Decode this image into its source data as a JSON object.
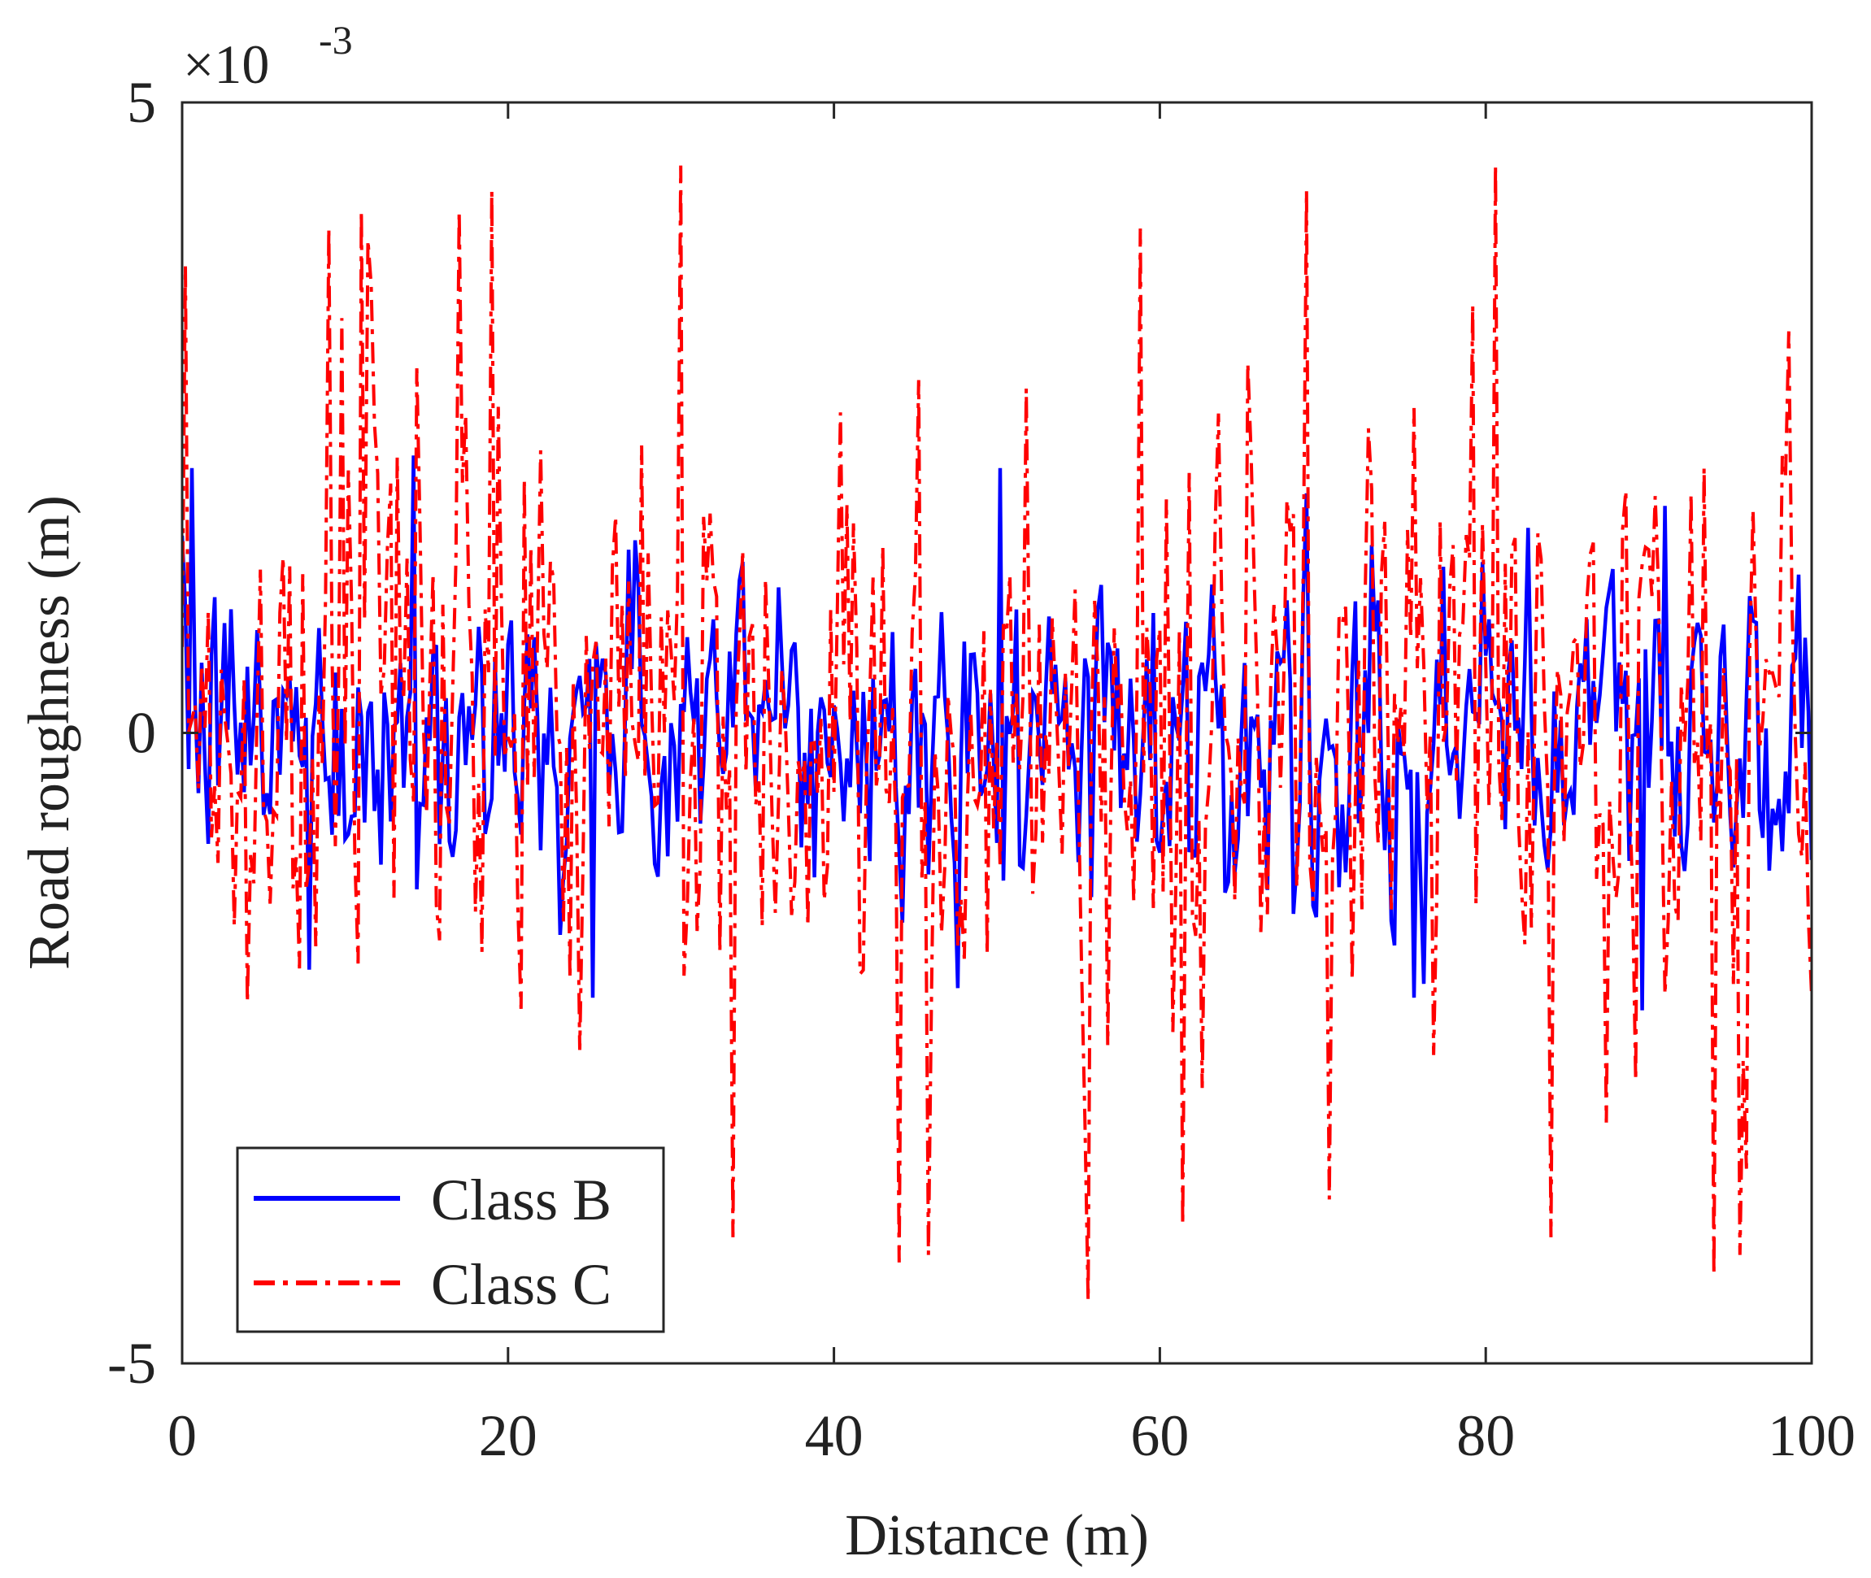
{
  "chart_data": {
    "type": "line",
    "title": "",
    "xlabel": "Distance (m)",
    "ylabel": "Road roughness (m)",
    "xlim": [
      0,
      100
    ],
    "ylim": [
      -5,
      5
    ],
    "y_scale_label": {
      "base": "×10",
      "exponent": "-3"
    },
    "x_ticks": [
      0,
      20,
      40,
      60,
      80,
      100
    ],
    "x_tick_labels": [
      "0",
      "20",
      "40",
      "60",
      "80",
      "100"
    ],
    "y_ticks": [
      -5,
      0,
      5
    ],
    "y_tick_labels": [
      "-5",
      "0",
      "5"
    ],
    "grid": false,
    "legend_position": "bottom-left",
    "note": "Dense random road-profile signals; values are in units of 1e-3 m. Sampled approximately every 0.2 m; only envelope and notable peaks are readable from the figure.",
    "series": [
      {
        "name": "Class B",
        "color": "#0000ff",
        "style": "solid",
        "sample_step": 0.2,
        "amplitude_rms": 0.6,
        "peak_max": 2.2,
        "peak_min": -2.2,
        "notable_peaks": [
          {
            "x": 0.6,
            "y": 2.1
          },
          {
            "x": 14.2,
            "y": 2.2
          },
          {
            "x": 50.3,
            "y": 2.1
          },
          {
            "x": 69.0,
            "y": 1.9
          },
          {
            "x": 91.0,
            "y": 1.8
          },
          {
            "x": 89.6,
            "y": -2.2
          },
          {
            "x": 75.6,
            "y": -2.1
          },
          {
            "x": 25.2,
            "y": -2.1
          }
        ]
      },
      {
        "name": "Class C",
        "color": "#ff0000",
        "style": "dashdot",
        "sample_step": 0.2,
        "amplitude_rms": 1.2,
        "peak_max": 4.5,
        "peak_min": -4.5,
        "notable_peaks": [
          {
            "x": 0.2,
            "y": 3.7
          },
          {
            "x": 9.0,
            "y": 4.0
          },
          {
            "x": 19.0,
            "y": 4.3
          },
          {
            "x": 30.6,
            "y": 4.5
          },
          {
            "x": 58.8,
            "y": 4.0
          },
          {
            "x": 69.0,
            "y": 4.3
          },
          {
            "x": 80.6,
            "y": 4.5
          },
          {
            "x": 55.6,
            "y": -4.5
          },
          {
            "x": 44.0,
            "y": -4.2
          },
          {
            "x": 33.8,
            "y": -4.0
          },
          {
            "x": 84.0,
            "y": -4.0
          },
          {
            "x": 94.0,
            "y": -4.3
          },
          {
            "x": 61.4,
            "y": -3.9
          },
          {
            "x": 70.4,
            "y": -3.7
          }
        ]
      }
    ]
  }
}
